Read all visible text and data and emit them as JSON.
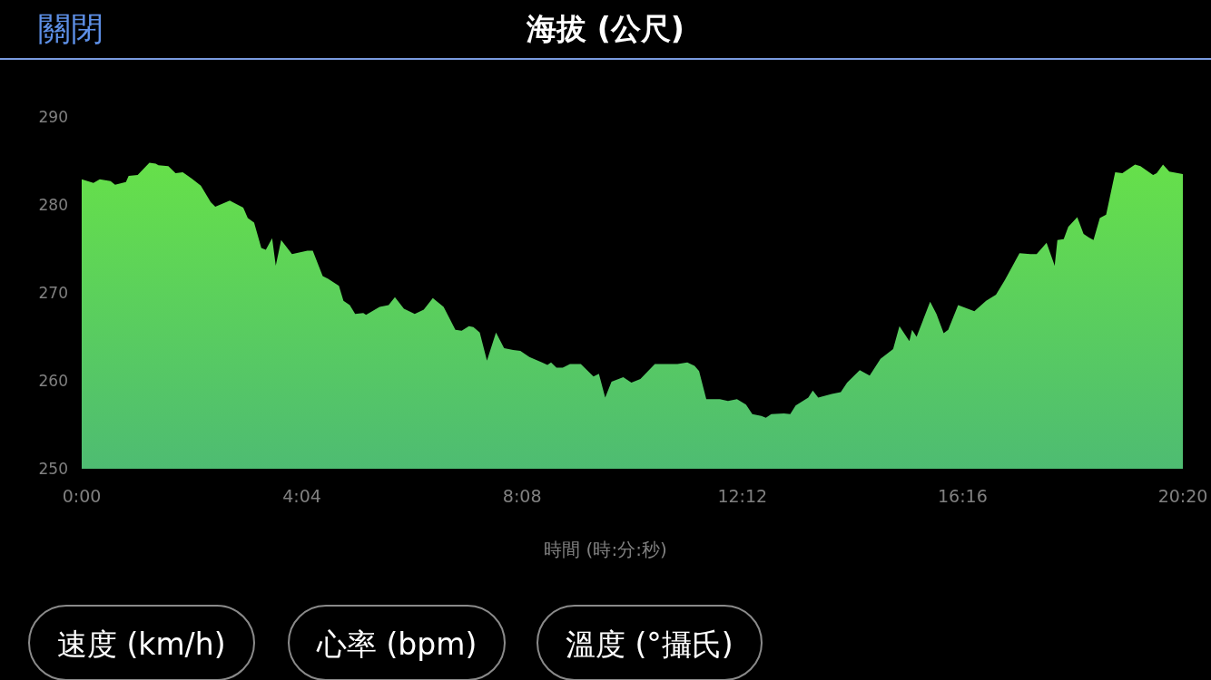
{
  "chart_data": {
    "type": "area",
    "title": "海拔 (公尺)",
    "xlabel": "時間 (時:分:秒)",
    "annotations": [
      "關閉",
      "速度 (km/h)",
      "心率 (bpm)",
      "溫度 (°攝氏)"
    ],
    "x": [
      0,
      13,
      20,
      32,
      37,
      49,
      52,
      62,
      75,
      82,
      85,
      96,
      104,
      112,
      122,
      132,
      143,
      148,
      164,
      179,
      184,
      191,
      199,
      204,
      211,
      215,
      221,
      233,
      250,
      256,
      267,
      273,
      285,
      290,
      297,
      303,
      312,
      315,
      330,
      340,
      347,
      357,
      369,
      379,
      389,
      401,
      414,
      421,
      429,
      434,
      441,
      449,
      459,
      468,
      478,
      486,
      496,
      510,
      516,
      520,
      526,
      533,
      541,
      553,
      567,
      573,
      580,
      587,
      600,
      609,
      619,
      635,
      660,
      671,
      679,
      684,
      692,
      707,
      716,
      726,
      736,
      743,
      753,
      758,
      764,
      778,
      785,
      791,
      805,
      810,
      816,
      831,
      841,
      848,
      862,
      873,
      885,
      899,
      906,
      917,
      920,
      925,
      940,
      947,
      955,
      960,
      971,
      989,
      1002,
      1013,
      1023,
      1039,
      1051,
      1058,
      1069,
      1078,
      1081,
      1088,
      1093,
      1103,
      1110,
      1116,
      1121,
      1128,
      1135,
      1145,
      1153,
      1167,
      1173,
      1187,
      1191,
      1198,
      1205,
      1220
    ],
    "values": [
      282.9,
      282.5,
      282.9,
      282.7,
      282.3,
      282.6,
      283.3,
      283.4,
      284.8,
      284.7,
      284.5,
      284.4,
      283.6,
      283.7,
      283.0,
      282.2,
      280.3,
      279.8,
      280.5,
      279.7,
      278.5,
      278.0,
      275.1,
      274.9,
      276.2,
      273.1,
      276.0,
      274.4,
      274.8,
      274.8,
      271.9,
      271.6,
      270.8,
      269.1,
      268.6,
      267.6,
      267.7,
      267.5,
      268.4,
      268.6,
      269.5,
      268.2,
      267.6,
      268.1,
      269.4,
      268.4,
      265.8,
      265.7,
      266.2,
      266.1,
      265.5,
      262.3,
      265.5,
      263.7,
      263.5,
      263.4,
      262.7,
      262.1,
      261.8,
      262.1,
      261.5,
      261.5,
      261.9,
      261.9,
      260.5,
      260.8,
      258.1,
      259.9,
      260.4,
      259.8,
      260.2,
      261.9,
      261.9,
      262.1,
      261.7,
      261.1,
      257.9,
      257.9,
      257.7,
      257.9,
      257.3,
      256.2,
      256.0,
      255.8,
      256.2,
      256.3,
      256.2,
      257.2,
      258.1,
      258.9,
      258.1,
      258.5,
      258.7,
      259.8,
      261.2,
      260.6,
      262.5,
      263.6,
      266.2,
      264.5,
      265.8,
      265.0,
      269.0,
      267.6,
      265.4,
      265.8,
      268.6,
      267.9,
      269.1,
      269.8,
      271.5,
      274.5,
      274.4,
      274.4,
      275.7,
      273.1,
      276.0,
      276.1,
      277.5,
      278.6,
      276.7,
      276.3,
      276.0,
      278.5,
      278.9,
      283.7,
      283.6,
      284.6,
      284.4,
      283.4,
      283.6,
      284.6,
      283.8,
      283.5
    ],
    "color": "#66e04a",
    "marker": "none",
    "grid": false,
    "xlim": [
      0,
      1220
    ],
    "xticks": [
      {
        "value": 0,
        "label": "0:00"
      },
      {
        "value": 244,
        "label": "4:04"
      },
      {
        "value": 488,
        "label": "8:08"
      },
      {
        "value": 732,
        "label": "12:12"
      },
      {
        "value": 976,
        "label": "16:16"
      },
      {
        "value": 1220,
        "label": "20:20"
      }
    ],
    "ylim": [
      250,
      290
    ],
    "yticks": [
      250,
      260,
      270,
      280,
      290
    ]
  }
}
